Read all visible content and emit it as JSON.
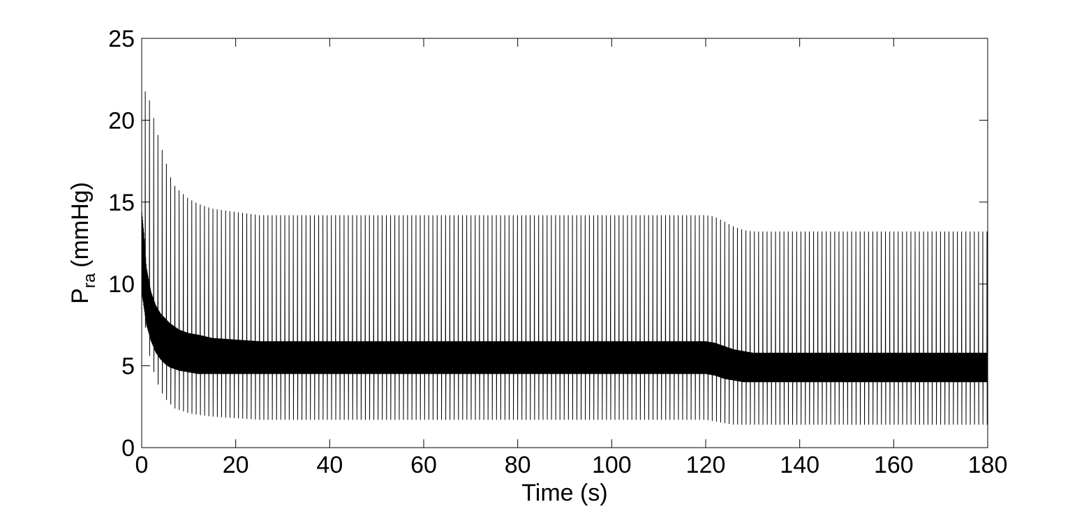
{
  "chart_data": {
    "type": "line",
    "title": "",
    "xlabel": "Time (s)",
    "ylabel_main": "P",
    "ylabel_sub": "ra",
    "ylabel_unit": "(mmHg)",
    "xlim": [
      0,
      180
    ],
    "ylim": [
      0,
      25
    ],
    "xticks": [
      "0",
      "20",
      "40",
      "60",
      "80",
      "100",
      "120",
      "140",
      "160",
      "180"
    ],
    "yticks": [
      "0",
      "5",
      "10",
      "15",
      "20",
      "25"
    ],
    "grid": false,
    "legend": "none",
    "line_color": "#000000",
    "beat_period_s": 0.9,
    "series": [
      {
        "envelope_time": [
          0,
          0.5,
          1,
          2,
          3,
          4,
          5,
          6,
          7,
          8,
          10,
          12,
          15,
          20,
          25,
          30,
          60,
          90,
          120,
          122,
          124,
          126,
          128,
          130,
          150,
          180
        ],
        "peak_max": [
          21.0,
          21.5,
          22.0,
          20.8,
          19.6,
          18.5,
          17.6,
          16.6,
          16.0,
          15.7,
          15.2,
          14.9,
          14.6,
          14.4,
          14.2,
          14.2,
          14.2,
          14.2,
          14.2,
          14.1,
          13.8,
          13.5,
          13.3,
          13.2,
          13.2,
          13.2
        ],
        "trough_min": [
          11.5,
          8.5,
          6.5,
          5.2,
          4.2,
          3.5,
          3.0,
          2.7,
          2.4,
          2.3,
          2.1,
          2.0,
          1.9,
          1.8,
          1.7,
          1.7,
          1.7,
          1.7,
          1.7,
          1.6,
          1.5,
          1.4,
          1.4,
          1.4,
          1.4,
          1.4
        ],
        "mid_high": [
          14.5,
          13.0,
          11.0,
          9.5,
          8.7,
          8.2,
          7.9,
          7.6,
          7.4,
          7.2,
          7.0,
          6.9,
          6.7,
          6.6,
          6.5,
          6.5,
          6.5,
          6.5,
          6.5,
          6.4,
          6.2,
          6.0,
          5.9,
          5.8,
          5.8,
          5.8
        ],
        "mid_low": [
          9.5,
          8.5,
          7.5,
          6.5,
          5.8,
          5.4,
          5.1,
          4.9,
          4.8,
          4.7,
          4.6,
          4.5,
          4.5,
          4.5,
          4.5,
          4.5,
          4.5,
          4.5,
          4.5,
          4.4,
          4.2,
          4.1,
          4.0,
          4.0,
          4.0,
          4.0
        ]
      }
    ]
  }
}
